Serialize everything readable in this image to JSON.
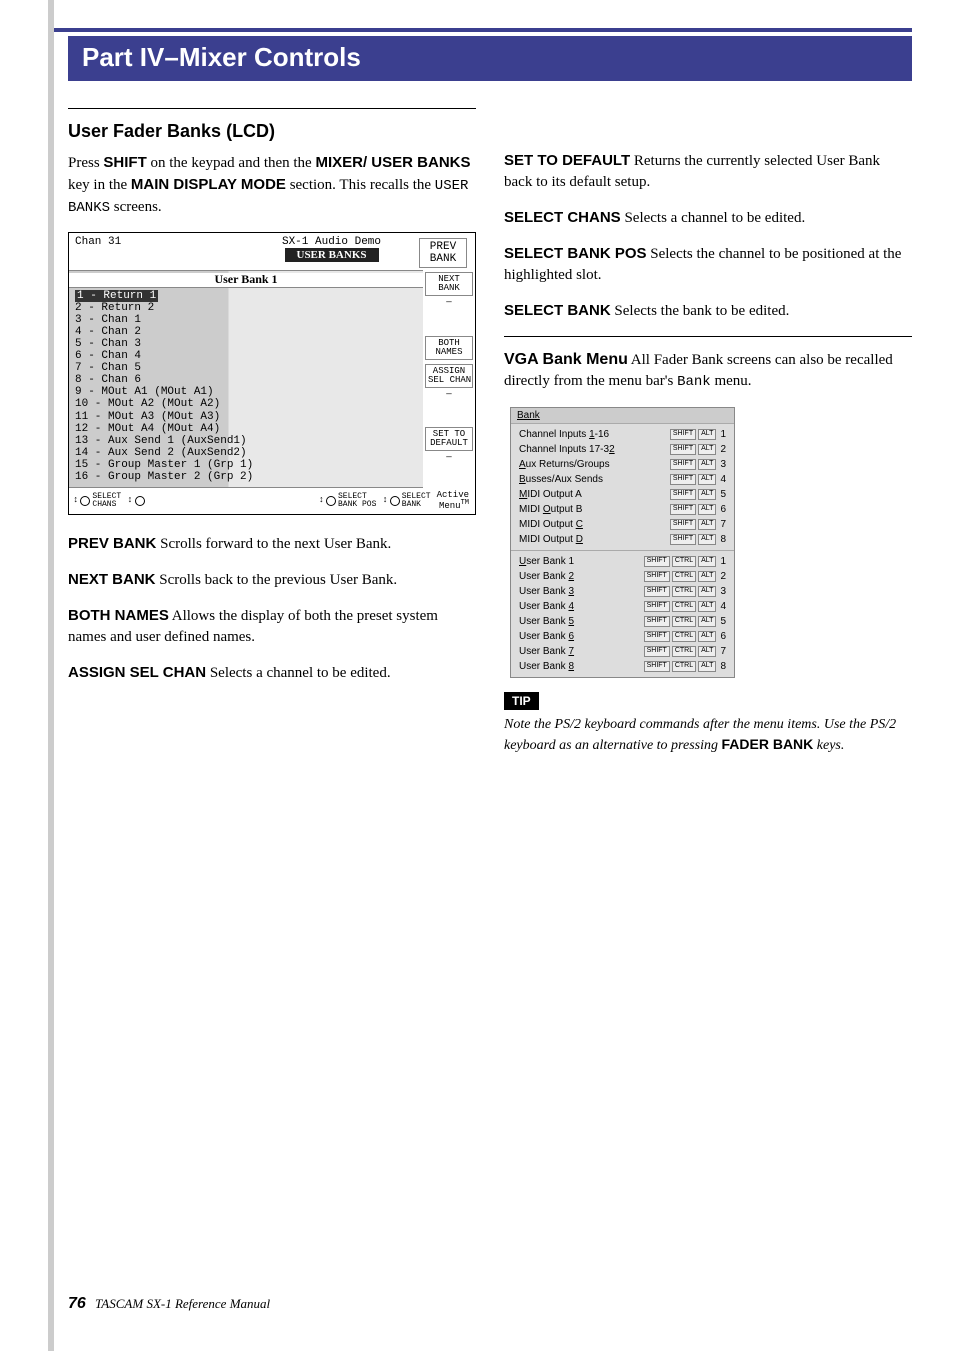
{
  "chapter_title": "Part IV–Mixer Controls",
  "section_title": "User Fader Banks (LCD)",
  "intro": {
    "pre": "Press ",
    "shift": "SHIFT",
    "mid1": " on the keypad and then the ",
    "mixer": "MIXER/ USER BANKS",
    "mid2": " key in the ",
    "mdm": "MAIN DISPLAY MODE",
    "mid3": " section. This recalls the ",
    "mono": "USER BANKS",
    "post": " screens."
  },
  "lcd": {
    "chan": "Chan 31",
    "title_top": "SX-1 Audio Demo",
    "tab": "USER BANKS",
    "panel_title": "User Bank 1",
    "rows": [
      "1 - Return 1",
      "2 - Return 2",
      "3 - Chan 1",
      "4 - Chan 2",
      "5 - Chan 3",
      "6 - Chan 4",
      "7 - Chan 5",
      "8 - Chan 6",
      "9 - MOut A1 (MOut A1)",
      "10 - MOut A2 (MOut A2)",
      "11 - MOut A3 (MOut A3)",
      "12 - MOut A4 (MOut A4)",
      "13 - Aux Send 1 (AuxSend1)",
      "14 - Aux Send 2 (AuxSend2)",
      "15 - Group Master 1 (Grp 1)",
      "16 - Group Master 2 (Grp 2)"
    ],
    "side": {
      "b1": "PREV\nBANK",
      "b2": "NEXT\nBANK",
      "b3": "BOTH\nNAMES",
      "b4": "ASSIGN\nSEL CHAN",
      "b5": "SET TO\nDEFAULT"
    },
    "knobs": {
      "k1": "SELECT\nCHANS",
      "k3": "SELECT\nBANK POS",
      "k4": "SELECT\nBANK"
    },
    "bottom_right": "Active\nMenu"
  },
  "defs_left": [
    {
      "term": "PREV BANK",
      "text": " Scrolls forward to the next User Bank."
    },
    {
      "term": "NEXT BANK",
      "text": " Scrolls back to the previous User Bank."
    },
    {
      "term": "BOTH NAMES",
      "text": " Allows the display of both the preset system names and user defined names."
    },
    {
      "term": "ASSIGN SEL CHAN",
      "text": " Selects a channel to be edited."
    }
  ],
  "defs_right_top": [
    {
      "term": "SET TO DEFAULT",
      "text": " Returns the currently selected User Bank back to its default setup."
    },
    {
      "term": "SELECT CHANS",
      "text": " Selects a channel to be edited."
    },
    {
      "term": "SELECT BANK POS",
      "text": " Selects the channel to be positioned at the highlighted slot."
    },
    {
      "term": "SELECT BANK",
      "text": " Selects the bank to be edited."
    }
  ],
  "vga": {
    "term": "VGA Bank Menu",
    "text_pre": " All Fader Bank screens can also be recalled directly from the menu bar's ",
    "mono": "Bank",
    "text_post": " menu."
  },
  "bank_menu": {
    "title": "Bank",
    "section1": [
      {
        "label_pre": "Channel Inputs ",
        "ul": "1",
        "label_post": "-16",
        "mods": [
          "SHIFT",
          "ALT"
        ],
        "key": "1"
      },
      {
        "label_pre": "Channel Inputs 17-3",
        "ul": "2",
        "label_post": "",
        "mods": [
          "SHIFT",
          "ALT"
        ],
        "key": "2"
      },
      {
        "label_pre": "",
        "ul": "A",
        "label_post": "ux Returns/Groups",
        "mods": [
          "SHIFT",
          "ALT"
        ],
        "key": "3"
      },
      {
        "label_pre": "",
        "ul": "B",
        "label_post": "usses/Aux Sends",
        "mods": [
          "SHIFT",
          "ALT"
        ],
        "key": "4"
      },
      {
        "label_pre": "",
        "ul": "M",
        "label_post": "IDI Output A",
        "mods": [
          "SHIFT",
          "ALT"
        ],
        "key": "5"
      },
      {
        "label_pre": "MIDI ",
        "ul": "O",
        "label_post": "utput B",
        "mods": [
          "SHIFT",
          "ALT"
        ],
        "key": "6"
      },
      {
        "label_pre": "MIDI Output ",
        "ul": "C",
        "label_post": "",
        "mods": [
          "SHIFT",
          "ALT"
        ],
        "key": "7"
      },
      {
        "label_pre": "MIDI Output ",
        "ul": "D",
        "label_post": "",
        "mods": [
          "SHIFT",
          "ALT"
        ],
        "key": "8"
      }
    ],
    "section2": [
      {
        "label_pre": "",
        "ul": "U",
        "label_post": "ser Bank 1",
        "mods": [
          "SHIFT",
          "CTRL",
          "ALT"
        ],
        "key": "1"
      },
      {
        "label_pre": "User Bank ",
        "ul": "2",
        "label_post": "",
        "mods": [
          "SHIFT",
          "CTRL",
          "ALT"
        ],
        "key": "2"
      },
      {
        "label_pre": "User Bank ",
        "ul": "3",
        "label_post": "",
        "mods": [
          "SHIFT",
          "CTRL",
          "ALT"
        ],
        "key": "3"
      },
      {
        "label_pre": "User Bank ",
        "ul": "4",
        "label_post": "",
        "mods": [
          "SHIFT",
          "CTRL",
          "ALT"
        ],
        "key": "4"
      },
      {
        "label_pre": "User Bank ",
        "ul": "5",
        "label_post": "",
        "mods": [
          "SHIFT",
          "CTRL",
          "ALT"
        ],
        "key": "5"
      },
      {
        "label_pre": "User Bank ",
        "ul": "6",
        "label_post": "",
        "mods": [
          "SHIFT",
          "CTRL",
          "ALT"
        ],
        "key": "6"
      },
      {
        "label_pre": "User Bank ",
        "ul": "7",
        "label_post": "",
        "mods": [
          "SHIFT",
          "CTRL",
          "ALT"
        ],
        "key": "7"
      },
      {
        "label_pre": "User Bank ",
        "ul": "8",
        "label_post": "",
        "mods": [
          "SHIFT",
          "CTRL",
          "ALT"
        ],
        "key": "8"
      }
    ]
  },
  "tip": {
    "badge": "TIP",
    "text_pre": "Note the PS/2 keyboard commands after the menu items. Use the PS/2 keyboard as an alternative to pressing ",
    "bold": "FADER BANK",
    "text_post": " keys."
  },
  "footer": {
    "page": "76",
    "text": " TASCAM SX-1 Reference Manual"
  }
}
